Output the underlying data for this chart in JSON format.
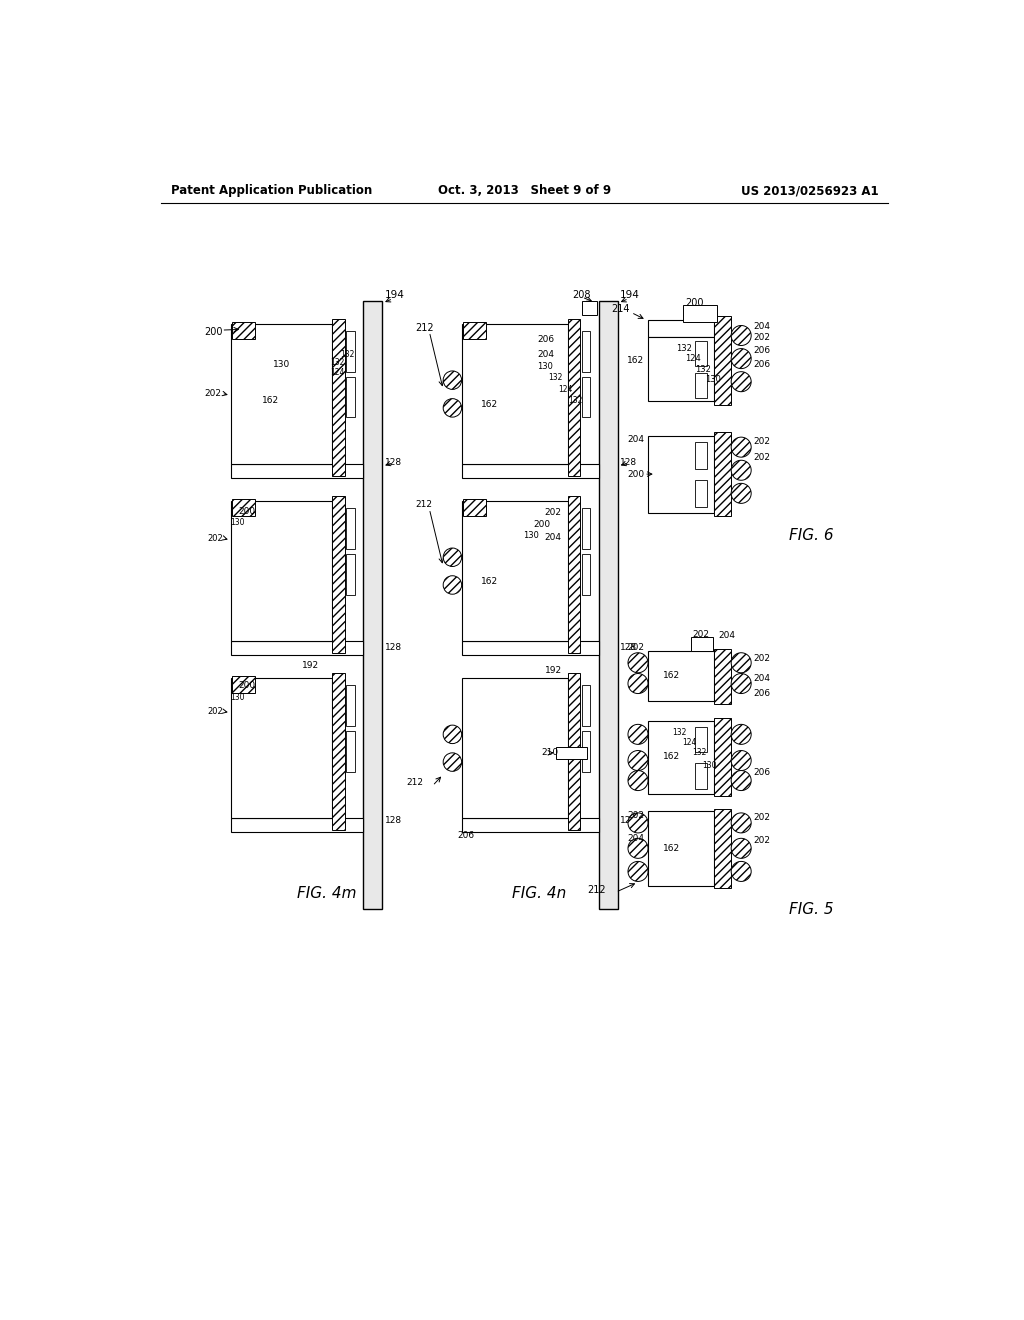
{
  "bg": "#ffffff",
  "header_left": "Patent Application Publication",
  "header_center": "Oct. 3, 2013  Sheet 9 of 9",
  "header_right": "US 2013/0256923 A1",
  "fig4m_label": "FIG. 4m",
  "fig4n_label": "FIG. 4n",
  "fig5_label": "FIG. 5",
  "fig6_label": "FIG. 6"
}
